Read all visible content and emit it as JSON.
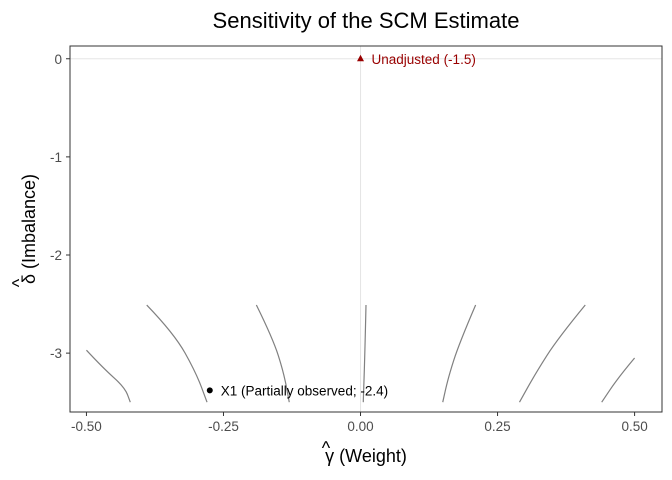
{
  "chart_data": {
    "type": "line",
    "title": "Sensitivity of the SCM Estimate",
    "xlabel": "γ (Weight)",
    "xlabel_hat": "^",
    "ylabel": "δ (Imbalance)",
    "ylabel_hat": "^",
    "xlim": [
      -0.53,
      0.55
    ],
    "ylim": [
      -3.6,
      0.13
    ],
    "x_ticks": [
      -0.5,
      -0.25,
      0.0,
      0.25,
      0.5
    ],
    "x_tick_labels": [
      "-0.50",
      "-0.25",
      "0.00",
      "0.25",
      "0.50"
    ],
    "y_ticks": [
      0,
      -1,
      -2,
      -3
    ],
    "y_tick_labels": [
      "0",
      "-1",
      "-2",
      "-3"
    ],
    "reference_lines": {
      "x": 0,
      "y": 0
    },
    "contours": [
      {
        "points": [
          [
            -0.5,
            -2.97
          ],
          [
            -0.47,
            -3.15
          ],
          [
            -0.43,
            -3.35
          ],
          [
            -0.42,
            -3.5
          ]
        ]
      },
      {
        "points": [
          [
            -0.39,
            -2.51
          ],
          [
            -0.34,
            -2.8
          ],
          [
            -0.3,
            -3.2
          ],
          [
            -0.28,
            -3.5
          ]
        ]
      },
      {
        "points": [
          [
            -0.19,
            -2.51
          ],
          [
            -0.16,
            -2.85
          ],
          [
            -0.14,
            -3.2
          ],
          [
            -0.13,
            -3.5
          ]
        ]
      },
      {
        "points": [
          [
            0.01,
            -2.51
          ],
          [
            0.008,
            -3.0
          ],
          [
            0.005,
            -3.5
          ]
        ]
      },
      {
        "points": [
          [
            0.21,
            -2.51
          ],
          [
            0.18,
            -2.9
          ],
          [
            0.16,
            -3.25
          ],
          [
            0.15,
            -3.5
          ]
        ]
      },
      {
        "points": [
          [
            0.41,
            -2.51
          ],
          [
            0.36,
            -2.85
          ],
          [
            0.32,
            -3.2
          ],
          [
            0.29,
            -3.5
          ]
        ]
      },
      {
        "points": [
          [
            0.5,
            -3.05
          ],
          [
            0.47,
            -3.25
          ],
          [
            0.44,
            -3.5
          ]
        ]
      }
    ],
    "points": [
      {
        "x": 0.0,
        "y": 0.0,
        "shape": "triangle",
        "label": "Unadjusted (-1.5)",
        "color": "#990000"
      },
      {
        "x": -0.275,
        "y": -3.38,
        "shape": "circle",
        "label": "X1 (Partially observed; -2.4)",
        "color": "#000000"
      }
    ],
    "grid": false,
    "colors": {
      "contour": "#808080",
      "reference": "#e5e5e5",
      "border": "#333333"
    }
  }
}
